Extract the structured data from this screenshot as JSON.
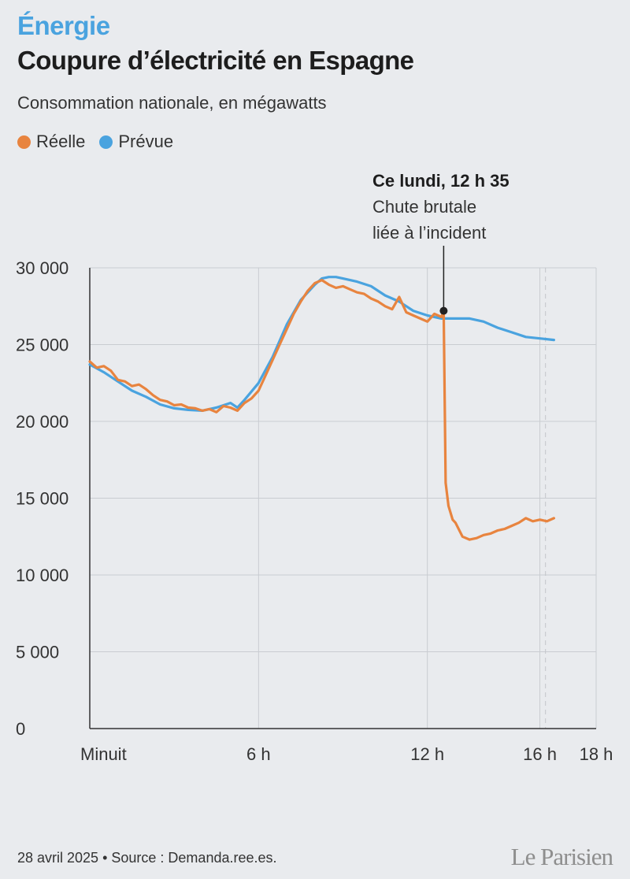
{
  "header": {
    "kicker": "Énergie",
    "title": "Coupure d’électricité en Espagne",
    "subtitle": "Consommation nationale, en mégawatts"
  },
  "footer": {
    "date": "28 avril 2025",
    "source": "Source : Demanda.ree.es.",
    "logo": "Le Parisien"
  },
  "colors": {
    "reelle": "#e8843f",
    "prevue": "#4aa3df",
    "grid": "#c9ccd1",
    "kicker": "#4aa3df"
  },
  "chart_data": {
    "type": "line",
    "title": "Coupure d’électricité en Espagne",
    "subtitle": "Consommation nationale, en mégawatts",
    "xlabel": "",
    "ylabel": "",
    "x_unit": "hours",
    "xlim": [
      0,
      18
    ],
    "ylim": [
      0,
      30000
    ],
    "grid": true,
    "legend_position": "top-left",
    "y_ticks": [
      {
        "value": 0,
        "label": "0"
      },
      {
        "value": 5000,
        "label": "5 000"
      },
      {
        "value": 10000,
        "label": "10 000"
      },
      {
        "value": 15000,
        "label": "15 000"
      },
      {
        "value": 20000,
        "label": "20 000"
      },
      {
        "value": 25000,
        "label": "25 000"
      },
      {
        "value": 30000,
        "label": "30 000"
      }
    ],
    "x_ticks": [
      {
        "value": 0,
        "label": "Minuit"
      },
      {
        "value": 6,
        "label": "6 h"
      },
      {
        "value": 12,
        "label": "12 h"
      },
      {
        "value": 16,
        "label": "16 h"
      },
      {
        "value": 18,
        "label": "18 h"
      }
    ],
    "series": [
      {
        "name": "Réelle",
        "color": "#e8843f",
        "x": [
          0,
          0.25,
          0.5,
          0.75,
          1,
          1.25,
          1.5,
          1.75,
          2,
          2.25,
          2.5,
          2.75,
          3,
          3.25,
          3.5,
          3.75,
          4,
          4.25,
          4.5,
          4.75,
          5,
          5.25,
          5.5,
          5.75,
          6,
          6.25,
          6.5,
          6.75,
          7,
          7.25,
          7.5,
          7.75,
          8,
          8.25,
          8.5,
          8.75,
          9,
          9.25,
          9.5,
          9.75,
          10,
          10.25,
          10.5,
          10.75,
          11,
          11.25,
          11.5,
          11.75,
          12,
          12.25,
          12.5,
          12.58,
          12.65,
          12.75,
          12.9,
          13,
          13.25,
          13.5,
          13.75,
          14,
          14.25,
          14.5,
          14.75,
          15,
          15.25,
          15.5,
          15.75,
          16,
          16.25,
          16.5
        ],
        "values": [
          23900,
          23500,
          23600,
          23300,
          22700,
          22600,
          22300,
          22400,
          22100,
          21700,
          21400,
          21300,
          21050,
          21100,
          20900,
          20850,
          20700,
          20800,
          20600,
          21000,
          20900,
          20700,
          21200,
          21500,
          22000,
          23000,
          24000,
          25000,
          26000,
          27000,
          27800,
          28500,
          29000,
          29200,
          28900,
          28700,
          28800,
          28600,
          28400,
          28300,
          28000,
          27800,
          27500,
          27300,
          28100,
          27100,
          26900,
          26700,
          26500,
          27000,
          26800,
          27200,
          16000,
          14500,
          13600,
          13400,
          12500,
          12300,
          12400,
          12600,
          12700,
          12900,
          13000,
          13200,
          13400,
          13700,
          13500,
          13600,
          13500,
          13700
        ]
      },
      {
        "name": "Prévue",
        "color": "#4aa3df",
        "x": [
          0,
          0.5,
          1,
          1.5,
          2,
          2.5,
          3,
          3.5,
          4,
          4.5,
          5,
          5.25,
          5.5,
          6,
          6.5,
          7,
          7.5,
          8,
          8.25,
          8.5,
          8.75,
          9,
          9.5,
          10,
          10.5,
          11,
          11.5,
          12,
          12.5,
          13,
          13.5,
          14,
          14.5,
          15,
          15.5,
          16,
          16.5
        ],
        "values": [
          23700,
          23200,
          22600,
          22000,
          21600,
          21100,
          20850,
          20750,
          20700,
          20900,
          21200,
          20900,
          21400,
          22500,
          24200,
          26300,
          27900,
          28900,
          29300,
          29400,
          29400,
          29300,
          29100,
          28800,
          28200,
          27800,
          27200,
          26900,
          26700,
          26700,
          26700,
          26500,
          26100,
          25800,
          25500,
          25400,
          25300
        ]
      }
    ],
    "annotations": [
      {
        "x": 12.58,
        "y": 27200,
        "title": "Ce lundi, 12 h 35",
        "lines": [
          "Chute brutale",
          "liée à l’incident"
        ]
      }
    ],
    "reference_line_x": 16.2
  }
}
